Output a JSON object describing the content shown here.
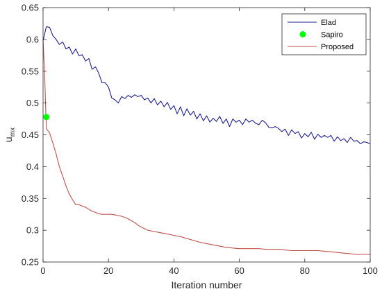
{
  "chart_data": {
    "type": "line",
    "xlabel": "Iteration number",
    "ylabel": "u",
    "ylabel_subscript": "mx",
    "xlim": [
      0,
      100
    ],
    "ylim": [
      0.25,
      0.65
    ],
    "x_ticks": [
      0,
      20,
      40,
      60,
      80,
      100
    ],
    "y_ticks": [
      0.25,
      0.3,
      0.35,
      0.4,
      0.45,
      0.5,
      0.55,
      0.6,
      0.65
    ],
    "x_tick_labels": [
      "0",
      "20",
      "40",
      "60",
      "80",
      "100"
    ],
    "y_tick_labels": [
      "0.25",
      "0.3",
      "0.35",
      "0.4",
      "0.45",
      "0.5",
      "0.55",
      "0.6",
      "0.65"
    ],
    "grid": false,
    "legend_position": "top-right",
    "series": [
      {
        "name": "Elad",
        "color": "#1f1f8f",
        "marker": "none",
        "x": [
          0,
          1,
          2,
          3,
          4,
          5,
          6,
          7,
          8,
          9,
          10,
          11,
          12,
          13,
          14,
          15,
          16,
          17,
          18,
          19,
          20,
          21,
          22,
          23,
          24,
          25,
          26,
          27,
          28,
          29,
          30,
          31,
          32,
          33,
          34,
          35,
          36,
          37,
          38,
          39,
          40,
          41,
          42,
          43,
          44,
          45,
          46,
          47,
          48,
          49,
          50,
          51,
          52,
          53,
          54,
          55,
          56,
          57,
          58,
          59,
          60,
          61,
          62,
          63,
          64,
          65,
          66,
          67,
          68,
          69,
          70,
          71,
          72,
          73,
          74,
          75,
          76,
          77,
          78,
          79,
          80,
          81,
          82,
          83,
          84,
          85,
          86,
          87,
          88,
          89,
          90,
          91,
          92,
          93,
          94,
          95,
          96,
          97,
          98,
          99,
          100
        ],
        "y": [
          0.598,
          0.62,
          0.619,
          0.606,
          0.6,
          0.592,
          0.596,
          0.585,
          0.588,
          0.577,
          0.585,
          0.574,
          0.576,
          0.566,
          0.57,
          0.553,
          0.557,
          0.547,
          0.532,
          0.532,
          0.525,
          0.508,
          0.505,
          0.5,
          0.51,
          0.507,
          0.512,
          0.509,
          0.513,
          0.51,
          0.512,
          0.505,
          0.508,
          0.5,
          0.507,
          0.497,
          0.503,
          0.494,
          0.501,
          0.49,
          0.496,
          0.483,
          0.494,
          0.48,
          0.491,
          0.481,
          0.487,
          0.475,
          0.483,
          0.472,
          0.48,
          0.47,
          0.476,
          0.471,
          0.479,
          0.468,
          0.475,
          0.463,
          0.475,
          0.47,
          0.473,
          0.466,
          0.475,
          0.47,
          0.473,
          0.468,
          0.466,
          0.473,
          0.469,
          0.462,
          0.461,
          0.463,
          0.46,
          0.455,
          0.459,
          0.449,
          0.458,
          0.452,
          0.455,
          0.445,
          0.452,
          0.447,
          0.454,
          0.443,
          0.451,
          0.446,
          0.449,
          0.446,
          0.449,
          0.44,
          0.447,
          0.441,
          0.444,
          0.438,
          0.446,
          0.44,
          0.441,
          0.436,
          0.439,
          0.438,
          0.436
        ]
      },
      {
        "name": "Sapiro",
        "color": "#00ff00",
        "marker": "circle",
        "x": [
          1
        ],
        "y": [
          0.478
        ]
      },
      {
        "name": "Proposed",
        "color": "#c0504d",
        "marker": "none",
        "x": [
          0,
          0.5,
          1,
          2,
          3,
          4,
          5,
          6,
          7,
          8,
          9,
          10,
          11,
          12,
          13,
          14,
          15,
          16,
          17,
          18,
          19,
          20,
          21,
          22,
          23,
          24,
          25,
          26,
          27,
          28,
          29,
          30,
          32,
          34,
          36,
          38,
          40,
          42,
          44,
          46,
          48,
          50,
          52,
          54,
          56,
          58,
          60,
          62,
          64,
          66,
          68,
          70,
          72,
          74,
          76,
          78,
          80,
          82,
          84,
          86,
          88,
          90,
          92,
          94,
          96,
          98,
          100
        ],
        "y": [
          0.6,
          0.54,
          0.46,
          0.453,
          0.437,
          0.42,
          0.4,
          0.385,
          0.37,
          0.357,
          0.348,
          0.34,
          0.34,
          0.338,
          0.336,
          0.333,
          0.33,
          0.328,
          0.326,
          0.325,
          0.325,
          0.325,
          0.325,
          0.324,
          0.323,
          0.322,
          0.32,
          0.318,
          0.315,
          0.312,
          0.308,
          0.305,
          0.3,
          0.298,
          0.296,
          0.294,
          0.292,
          0.29,
          0.287,
          0.284,
          0.281,
          0.279,
          0.277,
          0.275,
          0.273,
          0.272,
          0.271,
          0.271,
          0.271,
          0.271,
          0.27,
          0.27,
          0.27,
          0.269,
          0.268,
          0.268,
          0.268,
          0.268,
          0.268,
          0.267,
          0.266,
          0.265,
          0.264,
          0.263,
          0.262,
          0.262,
          0.262
        ]
      }
    ]
  }
}
